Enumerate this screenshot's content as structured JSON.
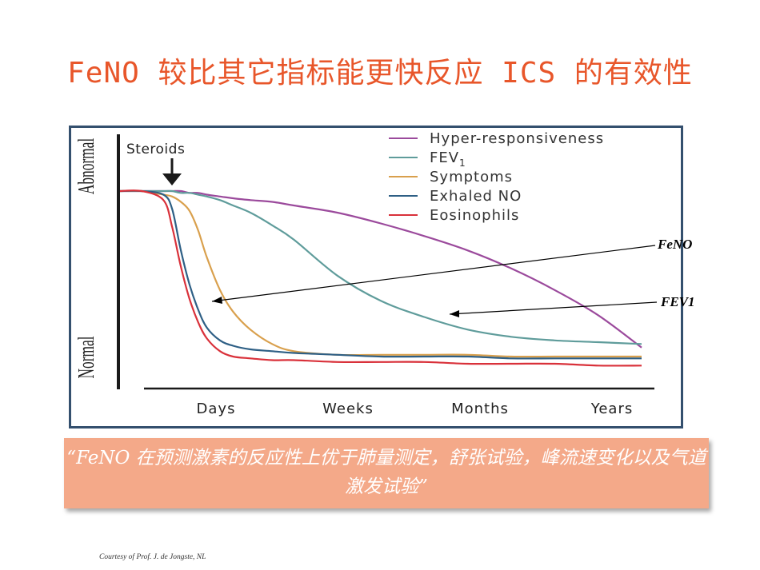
{
  "slide": {
    "title": "FeNO 较比其它指标能更快反应 ICS 的有效性",
    "quote": "“FeNO  在预测激素的反应性上优于肺量测定，舒张试验，峰流速变化以及气道激发试验”",
    "credit": "Courtesy of Prof. J. de Jongste, NL"
  },
  "callouts": [
    {
      "label": "FeNO",
      "target_series": "Exhaled NO"
    },
    {
      "label": "FEV1",
      "target_series": "FEV1"
    }
  ],
  "chart_data": {
    "type": "line",
    "title": "",
    "categories": [
      "Days",
      "Weeks",
      "Months",
      "Years"
    ],
    "xlabel": "",
    "ylabel_top": "Abnormal",
    "ylabel_bottom": "Normal",
    "ylim": [
      0,
      100
    ],
    "annotation": "Steroids",
    "annotation_icon": "down-arrow-icon",
    "legend_position": "top-right",
    "grid": false,
    "x": [
      0,
      0.5,
      1,
      1.2,
      1.4,
      1.6,
      1.8,
      2,
      2.3,
      2.6,
      3,
      3.5,
      4,
      5,
      6,
      7,
      8,
      9,
      10,
      11,
      12
    ],
    "series": [
      {
        "name": "Hyper-responsiveness",
        "color": "#9b4a9c",
        "values": [
          100,
          100,
          100,
          100,
          100,
          99,
          99,
          98,
          97,
          96,
          95,
          94,
          92,
          88,
          82,
          75,
          67,
          57,
          45,
          31,
          13
        ]
      },
      {
        "name": "FEV",
        "name_subscript": "1",
        "color": "#5f9c9b",
        "values": [
          100,
          100,
          100,
          100,
          99,
          99,
          98,
          97,
          95,
          92,
          88,
          81,
          73,
          53,
          39,
          30,
          23,
          19,
          17,
          16,
          15
        ]
      },
      {
        "name": "Symptoms",
        "color": "#d9a04d",
        "values": [
          100,
          100,
          98,
          97,
          94,
          89,
          78,
          63,
          45,
          33,
          23,
          15,
          11,
          9,
          9,
          9,
          9,
          8,
          8,
          8,
          8
        ]
      },
      {
        "name": "Exhaled NO",
        "color": "#2e5f85",
        "values": [
          100,
          100,
          98,
          90,
          67,
          48,
          34,
          24,
          17,
          14,
          12,
          11,
          10,
          9,
          8,
          8,
          8,
          7,
          7,
          7,
          7
        ]
      },
      {
        "name": "Eosinophils",
        "color": "#d9313a",
        "values": [
          100,
          100,
          95,
          80,
          58,
          40,
          27,
          18,
          11,
          8,
          7,
          6,
          6,
          5,
          5,
          5,
          4,
          4,
          4,
          3,
          3
        ]
      }
    ]
  }
}
